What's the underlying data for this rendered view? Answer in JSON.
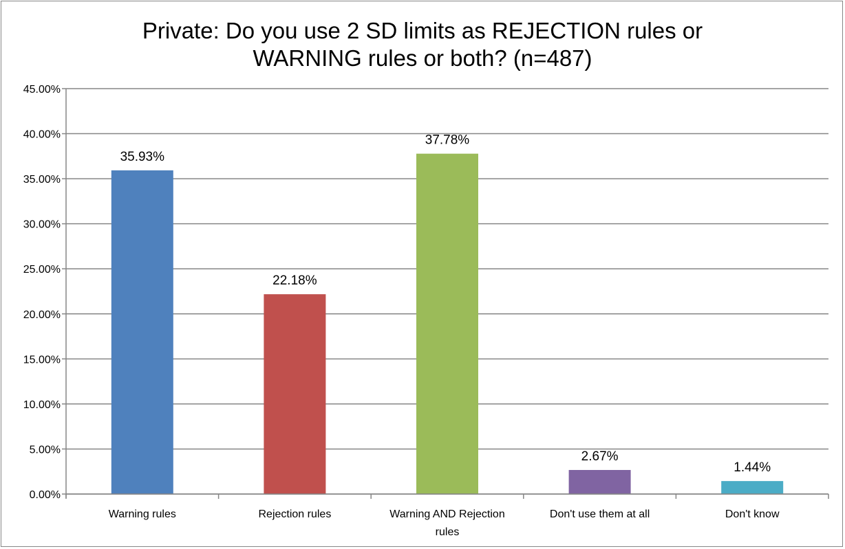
{
  "chart_data": {
    "type": "bar",
    "title": "Private: Do you use 2 SD limits as REJECTION rules or WARNING rules or both? (n=487)",
    "title_lines": [
      "Private: Do you use 2 SD limits as REJECTION rules or",
      "WARNING rules or both? (n=487)"
    ],
    "categories": [
      "Warning rules",
      "Rejection rules",
      "Warning AND Rejection rules",
      "Don't use them at all",
      "Don't know"
    ],
    "category_lines": [
      [
        "Warning rules"
      ],
      [
        "Rejection rules"
      ],
      [
        "Warning AND Rejection",
        "rules"
      ],
      [
        "Don't use them at all"
      ],
      [
        "Don't know"
      ]
    ],
    "values": [
      35.93,
      22.18,
      37.78,
      2.67,
      1.44
    ],
    "data_labels": [
      "35.93%",
      "22.18%",
      "37.78%",
      "2.67%",
      "1.44%"
    ],
    "colors": [
      "#4f81bd",
      "#c0504d",
      "#9bbb59",
      "#8064a2",
      "#4bacc6"
    ],
    "ylim": [
      0,
      45
    ],
    "yticks": [
      "0.00%",
      "5.00%",
      "10.00%",
      "15.00%",
      "20.00%",
      "25.00%",
      "30.00%",
      "35.00%",
      "40.00%",
      "45.00%"
    ],
    "grid": true,
    "legend": "none",
    "xlabel": "",
    "ylabel": ""
  }
}
